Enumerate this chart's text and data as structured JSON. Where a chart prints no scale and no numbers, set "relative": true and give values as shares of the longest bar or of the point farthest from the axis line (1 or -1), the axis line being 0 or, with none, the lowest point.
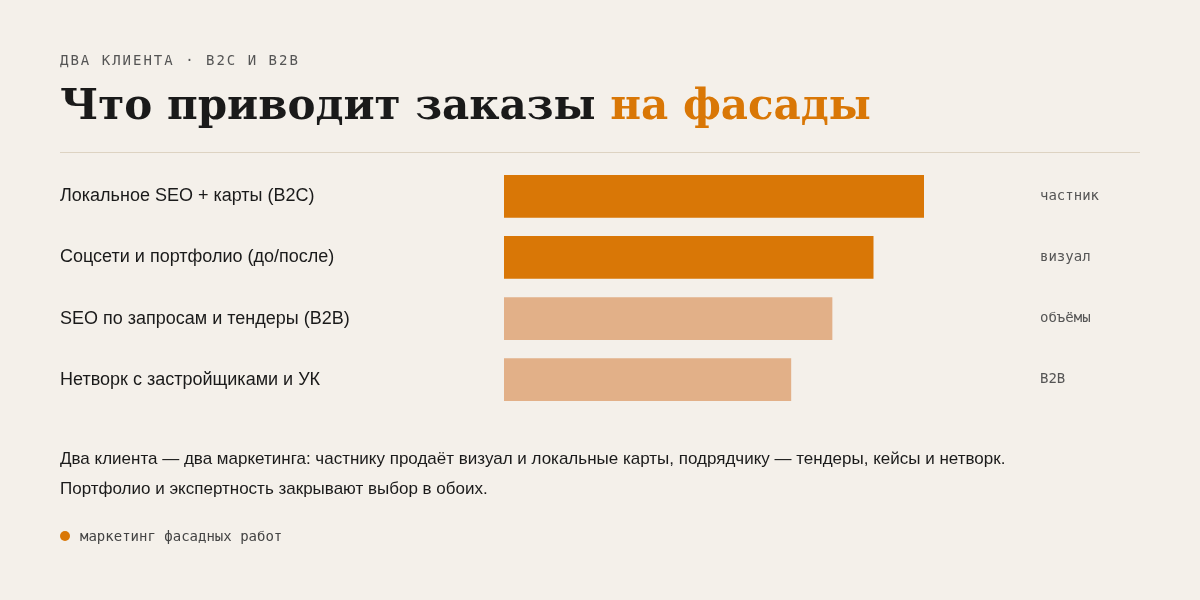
{
  "chart_data": {
    "type": "bar",
    "orientation": "horizontal",
    "relative": true,
    "subtitle": "ДВА КЛИЕНТА · B2C И B2B",
    "title": "Что приводит заказы на фасады",
    "categories": [
      "Локальное SEO + карты (B2C)",
      "Соцсети и портфолио (до/после)",
      "SEO по запросам и тендеры (B2B)",
      "Нетворк с застройщиками и УК"
    ],
    "values": [
      1,
      0.879,
      0.781,
      0.683
    ],
    "colors": [
      "#d97706",
      "#d97706",
      "#e2b088",
      "#e2b088"
    ],
    "annotations": [
      "частник",
      "визуал",
      "объёмы",
      "B2B",
      "Два клиента — два маркетинга: частнику продаёт визуал и локальные карты, подрядчику — тендеры, кейсы и нетворк. Портфолио и экспертность закрывают выбор в обоих.",
      "маркетинг фасадных работ"
    ],
    "legend": false
  }
}
